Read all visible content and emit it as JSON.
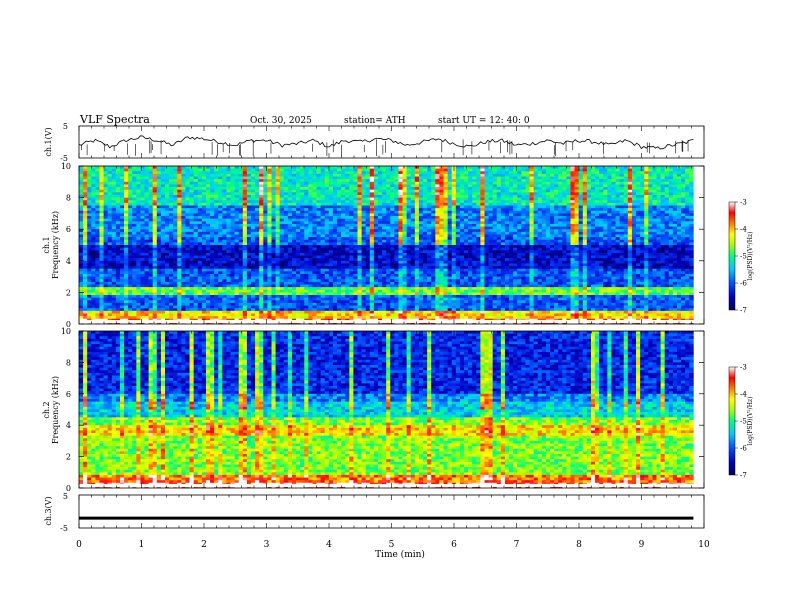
{
  "header": {
    "title": "VLF  Spectra",
    "date": "Oct. 30, 2025",
    "station": "station= ATH",
    "start_ut": "start  UT  =    12: 40: 0"
  },
  "chart_data": [
    {
      "type": "line",
      "panel": "ch1-waveform",
      "ylabel": "ch.1(V)",
      "ylim": [
        -5,
        5
      ],
      "yticks": [
        5,
        -5
      ],
      "xlim": [
        0,
        10
      ],
      "x": [
        0,
        0.25,
        0.5,
        0.75,
        1,
        1.25,
        1.5,
        1.75,
        2,
        2.25,
        2.5,
        2.75,
        3,
        3.25,
        3.5,
        3.75,
        4,
        4.25,
        4.5,
        4.75,
        5,
        5.25,
        5.5,
        5.75,
        6,
        6.25,
        6.5,
        6.75,
        7,
        7.25,
        7.5,
        7.75,
        8,
        8.25,
        8.5,
        8.75,
        9,
        9.25,
        9.5,
        9.75,
        9.83
      ],
      "values": [
        -1,
        0.5,
        -1.5,
        0.5,
        1.5,
        0.5,
        -1,
        1.5,
        1,
        0,
        -1,
        0.5,
        0.5,
        -1,
        -0.5,
        0.5,
        -1.5,
        0.5,
        0,
        1,
        0.5,
        -1,
        0,
        1,
        -0.5,
        -1.5,
        0,
        0.5,
        -1,
        -0.5,
        0.5,
        -0.5,
        0.5,
        0,
        -1,
        0.5,
        -1.5,
        -2,
        -1,
        0,
        0.5
      ]
    },
    {
      "type": "heatmap",
      "panel": "ch1-spectrogram",
      "ylabel": "ch.1\nFrequency  (kHz)",
      "ylim": [
        0,
        10
      ],
      "yticks": [
        0,
        2,
        4,
        6,
        8,
        10
      ],
      "xlim": [
        0,
        10
      ],
      "colorbar": {
        "label": "log(PSD)(V²/Hz)",
        "range": [
          -7,
          -3
        ],
        "ticks": [
          -3,
          -4,
          -5,
          -6,
          -7
        ]
      }
    },
    {
      "type": "heatmap",
      "panel": "ch2-spectrogram",
      "ylabel": "ch.2\nFrequency  (kHz)",
      "ylim": [
        0,
        10
      ],
      "yticks": [
        0,
        2,
        4,
        6,
        8,
        10
      ],
      "xlim": [
        0,
        10
      ],
      "colorbar": {
        "label": "log(PSD)(V²/Hz)",
        "range": [
          -7,
          -3
        ],
        "ticks": [
          -3,
          -4,
          -5,
          -6,
          -7
        ]
      }
    },
    {
      "type": "line",
      "panel": "ch3-waveform",
      "ylabel": "ch.3(V)",
      "ylim": [
        -5,
        5
      ],
      "yticks": [
        5,
        -5
      ],
      "xlim": [
        0,
        10
      ],
      "x": [
        0,
        9.83
      ],
      "values": [
        -2,
        -2
      ]
    }
  ],
  "xaxis": {
    "label": "Time  (min)",
    "ticks": [
      "0",
      "1",
      "2",
      "3",
      "4",
      "5",
      "6",
      "7",
      "8",
      "9",
      "10"
    ]
  },
  "colors": {
    "scale": [
      "#000060",
      "#0000c8",
      "#0050ff",
      "#00c8ff",
      "#00ff80",
      "#a0ff00",
      "#ffff00",
      "#ff8000",
      "#ff0000",
      "#ffffff"
    ]
  }
}
